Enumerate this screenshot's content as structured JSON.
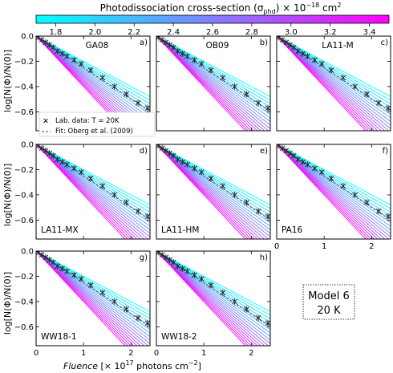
{
  "colorbar": {
    "label": "Photodissociation cross-section (σ",
    "label_sub": "phd",
    "label_tail": ") × 10",
    "label_exp": "−18",
    "label_unit": " cm",
    "label_unit_exp": "2",
    "range": [
      1.7,
      3.5
    ],
    "ticks": [
      "1.8",
      "2.0",
      "2.2",
      "2.4",
      "2.6",
      "2.8",
      "3.0",
      "3.2",
      "3.4"
    ],
    "tick_values": [
      1.8,
      2.0,
      2.2,
      2.4,
      2.6,
      2.8,
      3.0,
      3.2,
      3.4
    ],
    "colors": [
      "#00ffff",
      "#ff00ff"
    ]
  },
  "axes": {
    "ylabel": "log[N(Φ)/N(0)]",
    "xlabel_italic": "Fluence",
    "xlabel_rest": " [× 10",
    "xlabel_exp": "17",
    "xlabel_unit": " photons cm",
    "xlabel_unit_exp": "−2",
    "xlabel_close": "]",
    "xlim": [
      0,
      2.4
    ],
    "ylim": [
      -0.75,
      0.0
    ],
    "xticks": [
      "0",
      "1",
      "2"
    ],
    "xtick_values": [
      0,
      1,
      2
    ],
    "yticks": [
      "0.0",
      "−0.2",
      "−0.4",
      "−0.6"
    ],
    "ytick_values": [
      0,
      -0.2,
      -0.4,
      -0.6
    ]
  },
  "legend": {
    "lab_label": "Lab. data: T = 20K",
    "fit_label": "Fit: Oberg et al. (2009)"
  },
  "annotation": {
    "line1": "Model 6",
    "line2": "20 K"
  },
  "chart_data": {
    "type": "line",
    "title": "",
    "panels": [
      {
        "letter": "a)",
        "name": "GA08"
      },
      {
        "letter": "b)",
        "name": "OB09"
      },
      {
        "letter": "c)",
        "name": "LA11-M"
      },
      {
        "letter": "d)",
        "name": "LA11-MX"
      },
      {
        "letter": "e)",
        "name": "LA11-HM"
      },
      {
        "letter": "f)",
        "name": "PA16"
      },
      {
        "letter": "g)",
        "name": "WW18-1"
      },
      {
        "letter": "h)",
        "name": "WW18-2"
      }
    ],
    "model_slope_range": [
      -0.2,
      -0.4
    ],
    "model_line_count": 18,
    "fit_line": {
      "x": [
        0,
        2.4
      ],
      "y": [
        0,
        -0.6
      ]
    },
    "lab_data": {
      "x": [
        0.05,
        0.12,
        0.2,
        0.28,
        0.36,
        0.45,
        0.55,
        0.65,
        0.8,
        0.95,
        1.15,
        1.4,
        1.65,
        1.9,
        2.15,
        2.35
      ],
      "y": [
        -0.01,
        -0.03,
        -0.05,
        -0.07,
        -0.09,
        -0.12,
        -0.14,
        -0.16,
        -0.19,
        -0.22,
        -0.27,
        -0.33,
        -0.4,
        -0.46,
        -0.53,
        -0.57
      ]
    }
  }
}
